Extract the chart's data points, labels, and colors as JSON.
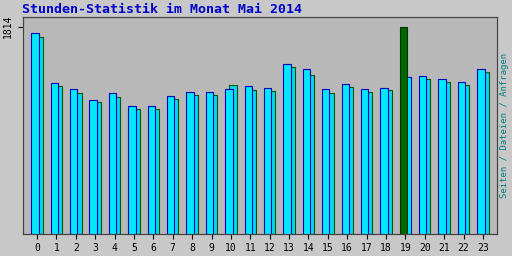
{
  "title": "Stunden-Statistik im Monat Mai 2014",
  "title_color": "#0000cc",
  "ylabel_right": "Seiten / Dateien / Anfragen",
  "ylabel_right_color": "#008080",
  "x_ticks": [
    0,
    1,
    2,
    3,
    4,
    5,
    6,
    7,
    8,
    9,
    10,
    11,
    12,
    13,
    14,
    15,
    16,
    17,
    18,
    19,
    20,
    21,
    22,
    23
  ],
  "background_color": "#c8c8c8",
  "plot_bg_color": "#b8b8b8",
  "bar1_color": "#00e8ff",
  "bar1_edge": "#0000bb",
  "bar2_color": "#00d8ee",
  "bar2_edge": "#005500",
  "ylim": [
    0,
    1900
  ],
  "bar_width": 0.42,
  "values1": [
    1760,
    1320,
    1270,
    1175,
    1235,
    1115,
    1120,
    1210,
    1245,
    1240,
    1265,
    1290,
    1280,
    1490,
    1440,
    1265,
    1310,
    1265,
    1280,
    1814,
    1385,
    1355,
    1330,
    1440
  ],
  "values2": [
    1720,
    1290,
    1235,
    1155,
    1200,
    1095,
    1095,
    1180,
    1215,
    1215,
    1305,
    1260,
    1250,
    1460,
    1390,
    1230,
    1285,
    1240,
    1255,
    1370,
    1355,
    1325,
    1300,
    1415
  ],
  "special_bar_idx": 19,
  "special_bar_color": "#006600",
  "special_bar_edge": "#003300",
  "special_bar_height": 1814,
  "ylabel_left_val": 1814
}
